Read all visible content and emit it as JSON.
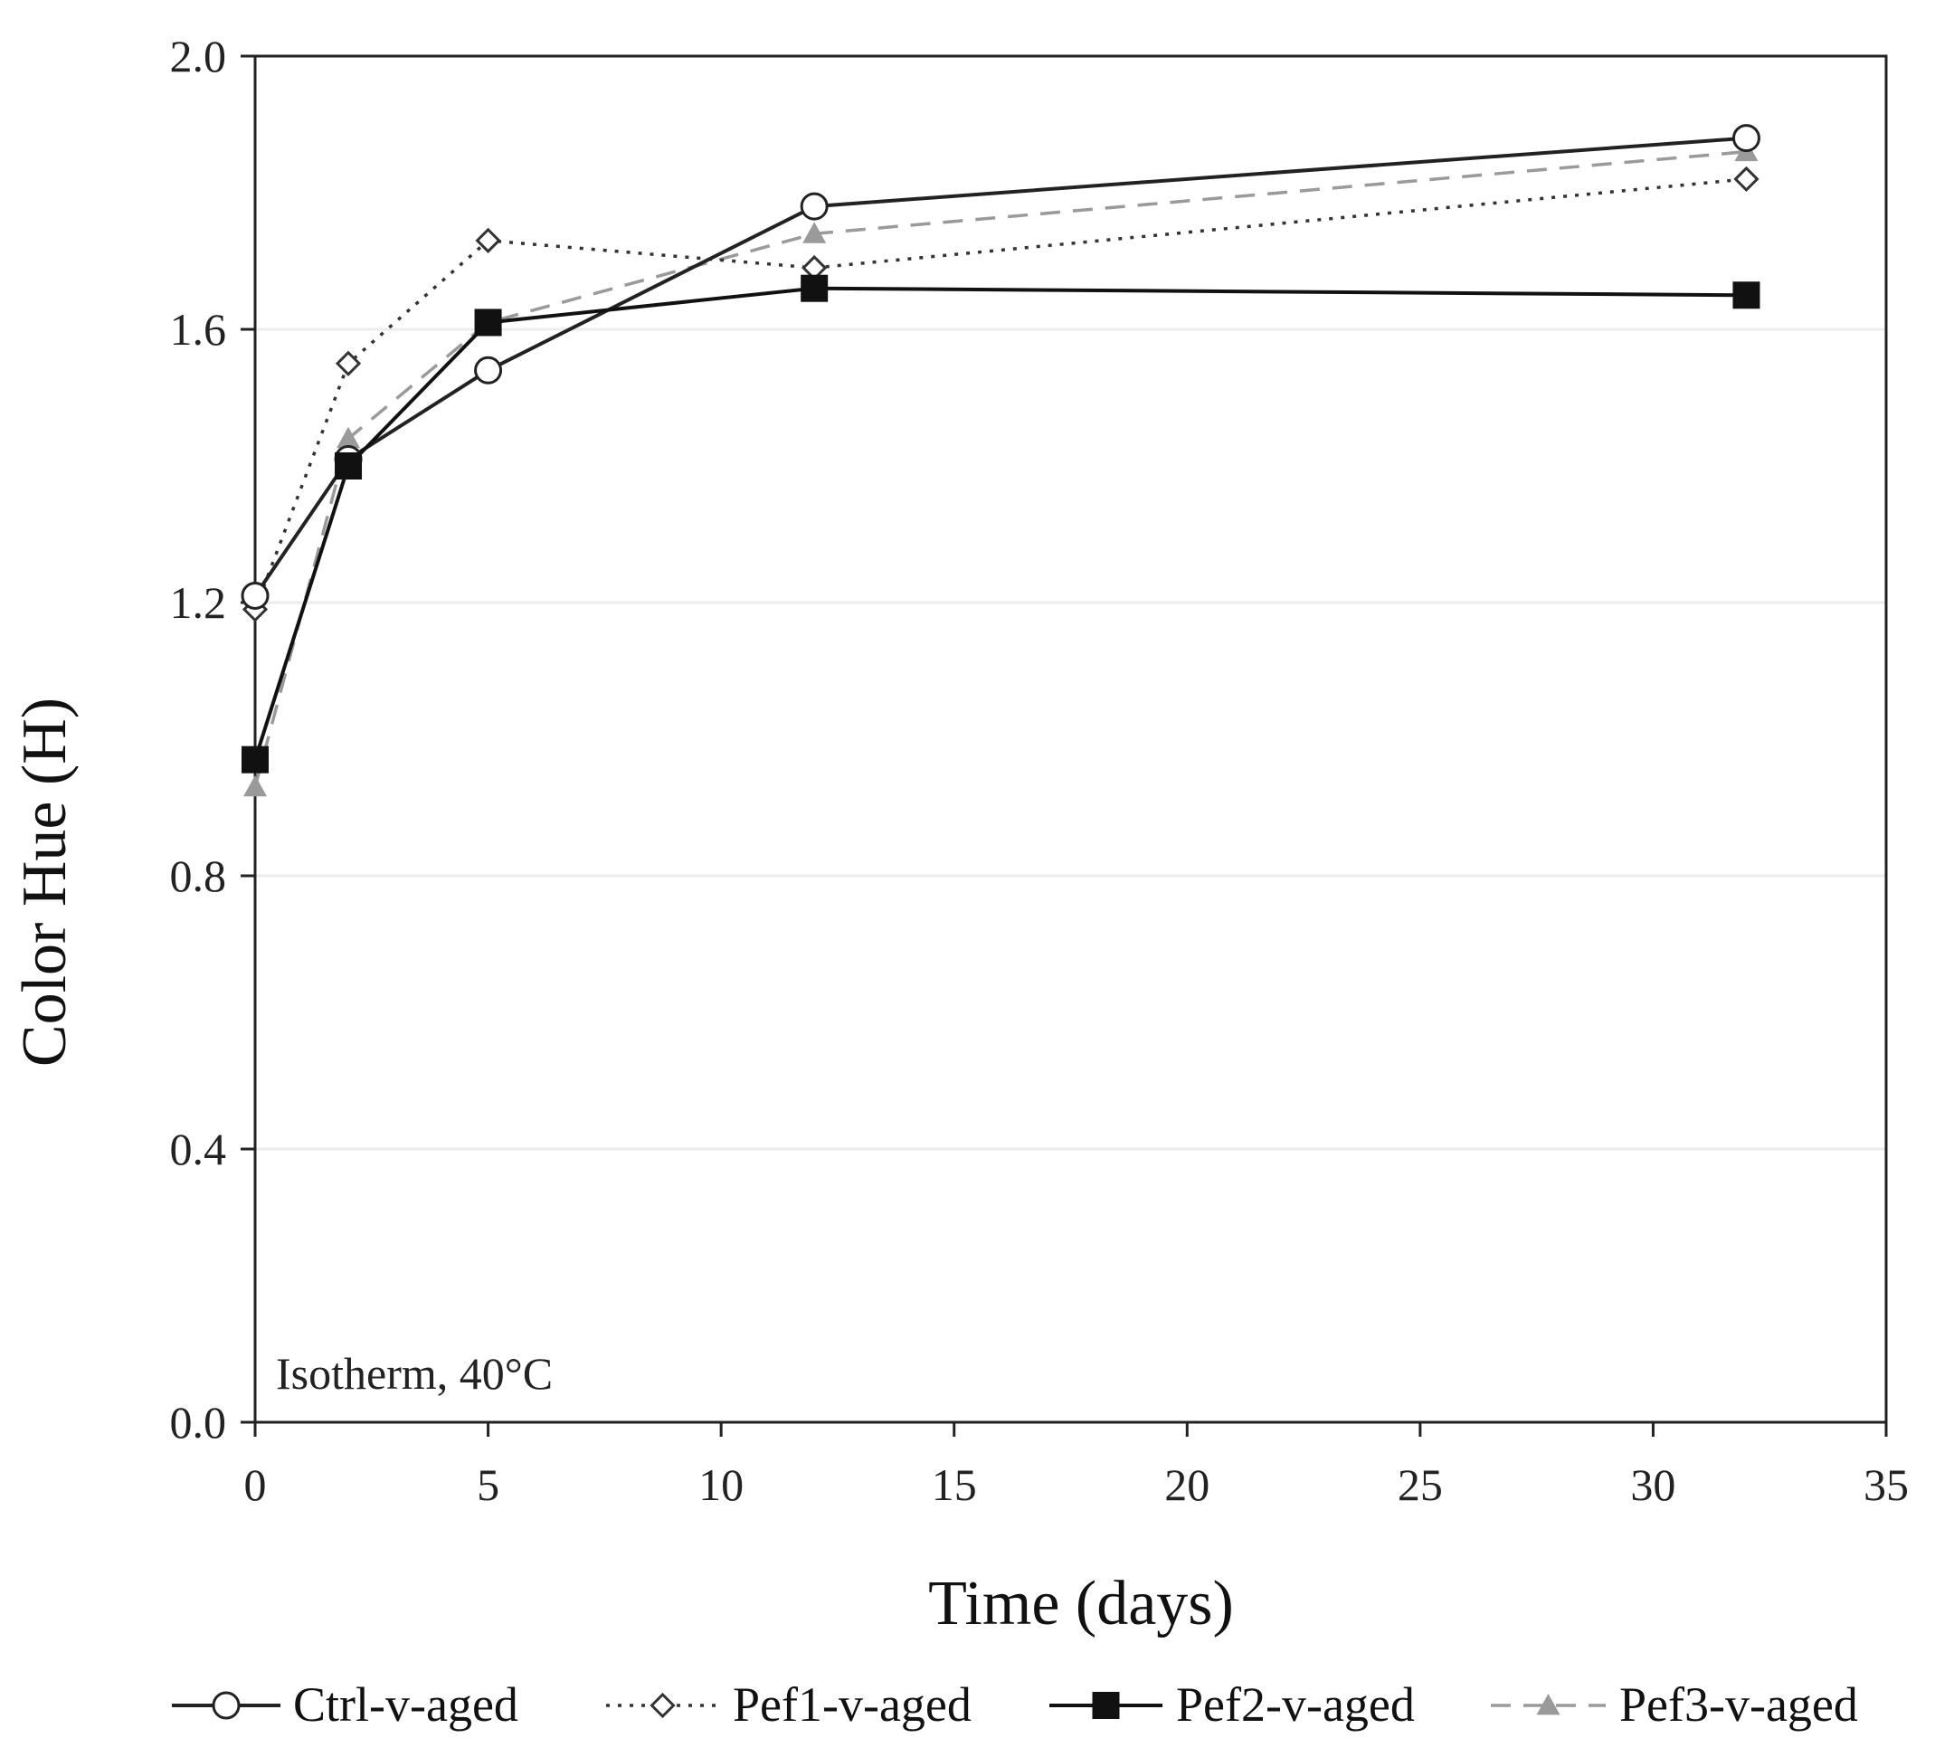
{
  "chart_data": {
    "type": "line",
    "title": "",
    "xlabel": "Time (days)",
    "ylabel": "Color Hue (H)",
    "xlim": [
      0,
      35
    ],
    "ylim": [
      0.0,
      2.0
    ],
    "xticks": [
      0,
      5,
      10,
      15,
      20,
      25,
      30,
      35
    ],
    "yticks": [
      "0.0",
      "0.4",
      "0.8",
      "1.2",
      "1.6",
      "2.0"
    ],
    "grid": "horizontal",
    "annotation": "Isotherm, 40°C",
    "legend_position": "bottom",
    "series": [
      {
        "name": "Ctrl-v-aged",
        "marker": "open-circle",
        "line": "solid",
        "color": "#222222",
        "x": [
          0,
          2,
          5,
          12,
          32
        ],
        "y": [
          1.21,
          1.41,
          1.54,
          1.78,
          1.88
        ]
      },
      {
        "name": "Pef1-v-aged",
        "marker": "open-diamond",
        "line": "dotted",
        "color": "#333333",
        "x": [
          0,
          2,
          5,
          12,
          32
        ],
        "y": [
          1.19,
          1.55,
          1.73,
          1.69,
          1.82
        ]
      },
      {
        "name": "Pef2-v-aged",
        "marker": "filled-square",
        "line": "solid",
        "color": "#111111",
        "x": [
          0,
          2,
          5,
          12,
          32
        ],
        "y": [
          0.97,
          1.4,
          1.61,
          1.66,
          1.65
        ]
      },
      {
        "name": "Pef3-v-aged",
        "marker": "filled-triangle",
        "line": "dashed",
        "color": "#9a9a9a",
        "x": [
          0,
          2,
          5,
          12,
          32
        ],
        "y": [
          0.93,
          1.44,
          1.61,
          1.74,
          1.86
        ]
      }
    ]
  }
}
